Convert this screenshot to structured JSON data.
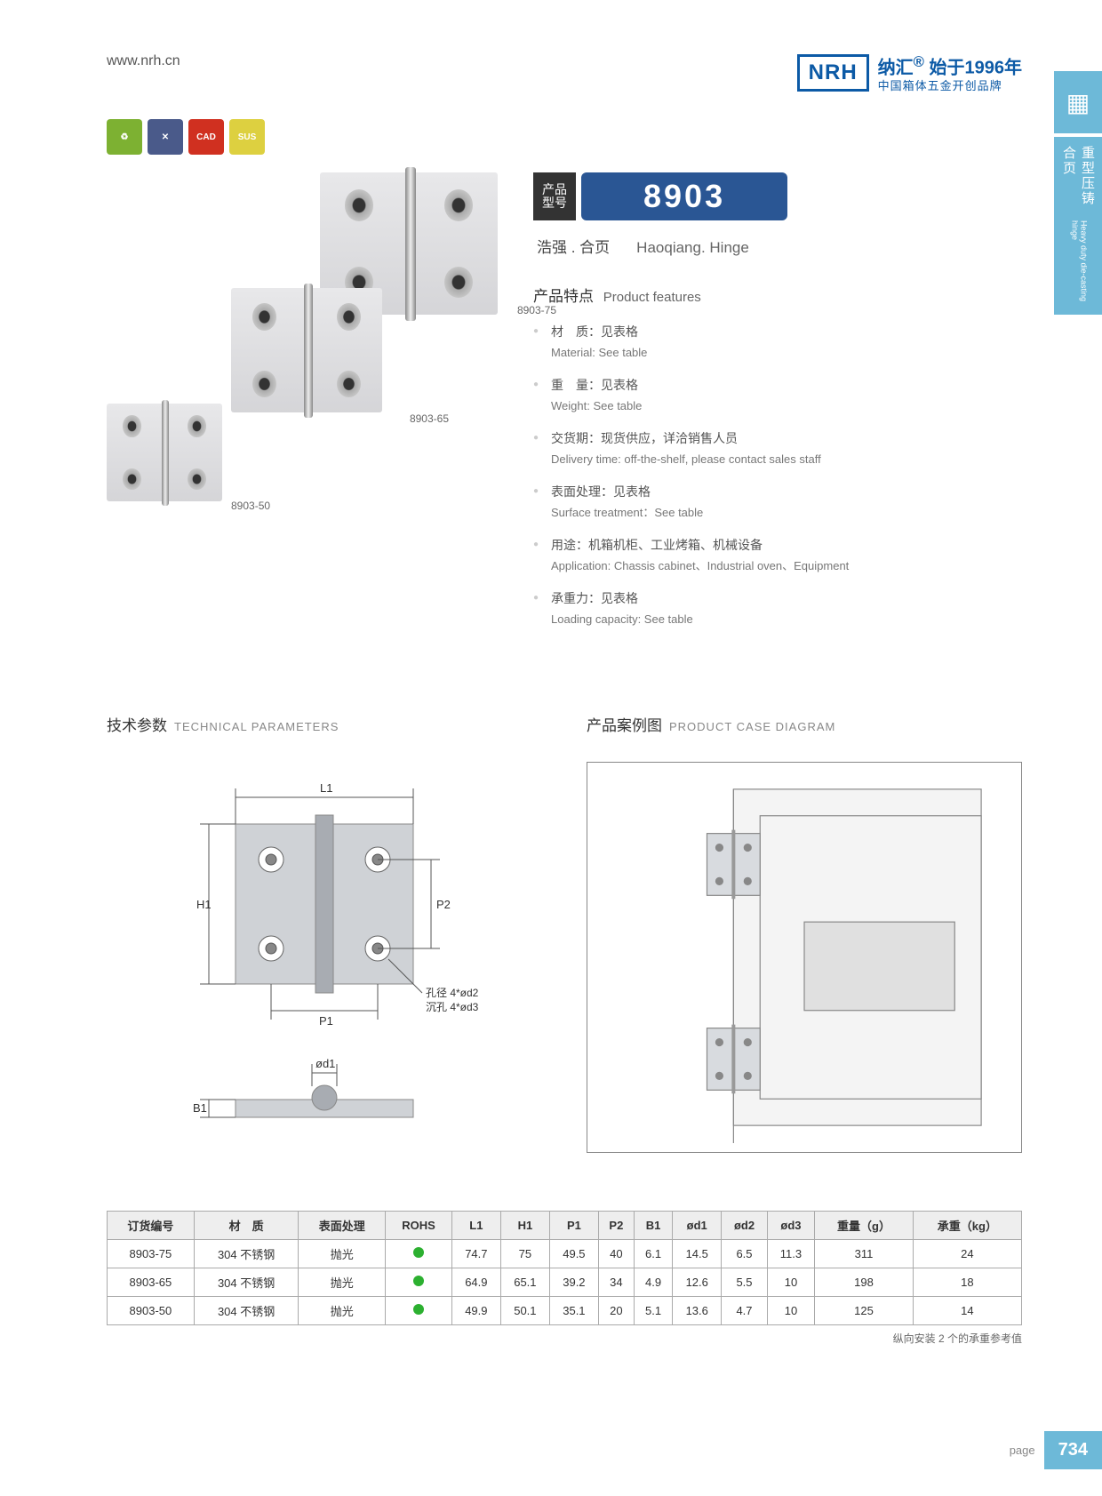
{
  "header": {
    "url": "www.nrh.cn",
    "logo": "NRH",
    "brand_cn": "纳汇",
    "brand_year": "始于1996年",
    "brand_sub": "中国箱体五金开创品牌"
  },
  "sidetab": {
    "cn": "重型压铸合页",
    "en": "Heavy duty die-casting hinge"
  },
  "badges": [
    "♻",
    "✕",
    "CAD",
    "SUS"
  ],
  "model": {
    "label_cn1": "产品",
    "label_cn2": "型号",
    "number": "8903"
  },
  "subtitle": {
    "cn": "浩强 . 合页",
    "en": "Haoqiang. Hinge"
  },
  "features_title": {
    "cn": "产品特点",
    "en": "Product features"
  },
  "features": [
    {
      "cn": "材　质：见表格",
      "en": "Material: See table"
    },
    {
      "cn": "重　量：见表格",
      "en": "Weight: See table"
    },
    {
      "cn": "交货期：现货供应，详洽销售人员",
      "en": "Delivery time: off-the-shelf, please contact sales staff"
    },
    {
      "cn": "表面处理：见表格",
      "en": "Surface treatment：See table"
    },
    {
      "cn": "用途：机箱机柜、工业烤箱、机械设备",
      "en": "Application: Chassis cabinet、Industrial oven、Equipment"
    },
    {
      "cn": "承重力：见表格",
      "en": "Loading capacity: See table"
    }
  ],
  "img_labels": {
    "l1": "8903-75",
    "l2": "8903-65",
    "l3": "8903-50"
  },
  "tech_title": {
    "cn": "技术参数",
    "en": "TECHNICAL PARAMETERS"
  },
  "case_title": {
    "cn": "产品案例图",
    "en": "PRODUCT CASE DIAGRAM"
  },
  "tech_labels": {
    "L1": "L1",
    "H1": "H1",
    "P1": "P1",
    "P2": "P2",
    "B1": "B1",
    "od1": "ød1",
    "hole1": "孔径 4*ød2",
    "hole2": "沉孔 4*ød3"
  },
  "table": {
    "columns": [
      "订货编号",
      "材　质",
      "表面处理",
      "ROHS",
      "L1",
      "H1",
      "P1",
      "P2",
      "B1",
      "ød1",
      "ød2",
      "ød3",
      "重量（g）",
      "承重（kg）"
    ],
    "rows": [
      [
        "8903-75",
        "304 不锈钢",
        "抛光",
        "●",
        "74.7",
        "75",
        "49.5",
        "40",
        "6.1",
        "14.5",
        "6.5",
        "11.3",
        "311",
        "24"
      ],
      [
        "8903-65",
        "304 不锈钢",
        "抛光",
        "●",
        "64.9",
        "65.1",
        "39.2",
        "34",
        "4.9",
        "12.6",
        "5.5",
        "10",
        "198",
        "18"
      ],
      [
        "8903-50",
        "304 不锈钢",
        "抛光",
        "●",
        "49.9",
        "50.1",
        "35.1",
        "20",
        "5.1",
        "13.6",
        "4.7",
        "10",
        "125",
        "14"
      ]
    ],
    "note": "纵向安装 2 个的承重参考值"
  },
  "footer": {
    "label": "page",
    "num": "734"
  }
}
